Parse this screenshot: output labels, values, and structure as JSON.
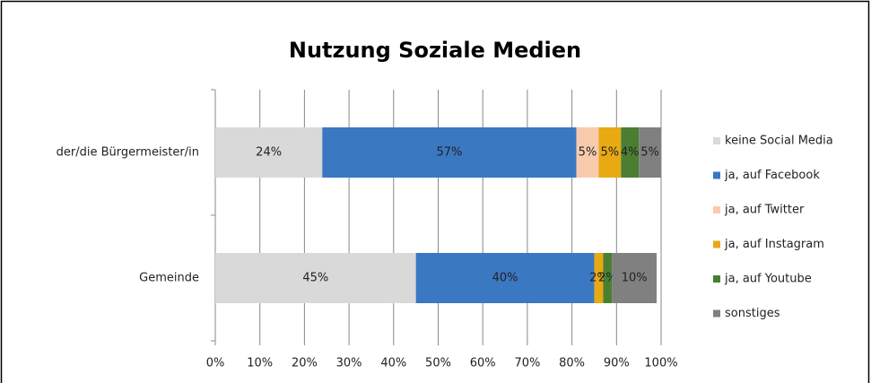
{
  "chart_data": {
    "type": "stacked_barh",
    "title": "Nutzung Soziale Medien",
    "categories": [
      "der/die Bürgermeister/in",
      "Gemeinde"
    ],
    "series": [
      {
        "name": "keine Social Media",
        "color": "#d9d9d9",
        "values": [
          24,
          45
        ],
        "value_labels": [
          "24%",
          "45%"
        ]
      },
      {
        "name": "ja, auf Facebook",
        "color": "#3a78c2",
        "values": [
          57,
          40
        ],
        "value_labels": [
          "57%",
          "40%"
        ]
      },
      {
        "name": "ja, auf Twitter",
        "color": "#f8cbad",
        "values": [
          5,
          null
        ],
        "value_labels": [
          "5%",
          null
        ]
      },
      {
        "name": "ja, auf Instagram",
        "color": "#e8a913",
        "values": [
          5,
          2
        ],
        "value_labels": [
          "5%",
          "2%"
        ]
      },
      {
        "name": "ja, auf Youtube",
        "color": "#4a7f32",
        "values": [
          4,
          2
        ],
        "value_labels": [
          "4%",
          "2%"
        ]
      },
      {
        "name": "sonstiges",
        "color": "#808080",
        "values": [
          5,
          10
        ],
        "value_labels": [
          "5%",
          "10%"
        ]
      }
    ],
    "xlim": [
      0,
      100
    ],
    "xticks": [
      {
        "value": 0,
        "label": "0%"
      },
      {
        "value": 10,
        "label": "10%"
      },
      {
        "value": 20,
        "label": "20%"
      },
      {
        "value": 30,
        "label": "30%"
      },
      {
        "value": 40,
        "label": "40%"
      },
      {
        "value": 50,
        "label": "50%"
      },
      {
        "value": 60,
        "label": "60%"
      },
      {
        "value": 70,
        "label": "70%"
      },
      {
        "value": 80,
        "label": "80%"
      },
      {
        "value": 90,
        "label": "90%"
      },
      {
        "value": 100,
        "label": "100%"
      }
    ],
    "grid": true,
    "legend": "right"
  }
}
